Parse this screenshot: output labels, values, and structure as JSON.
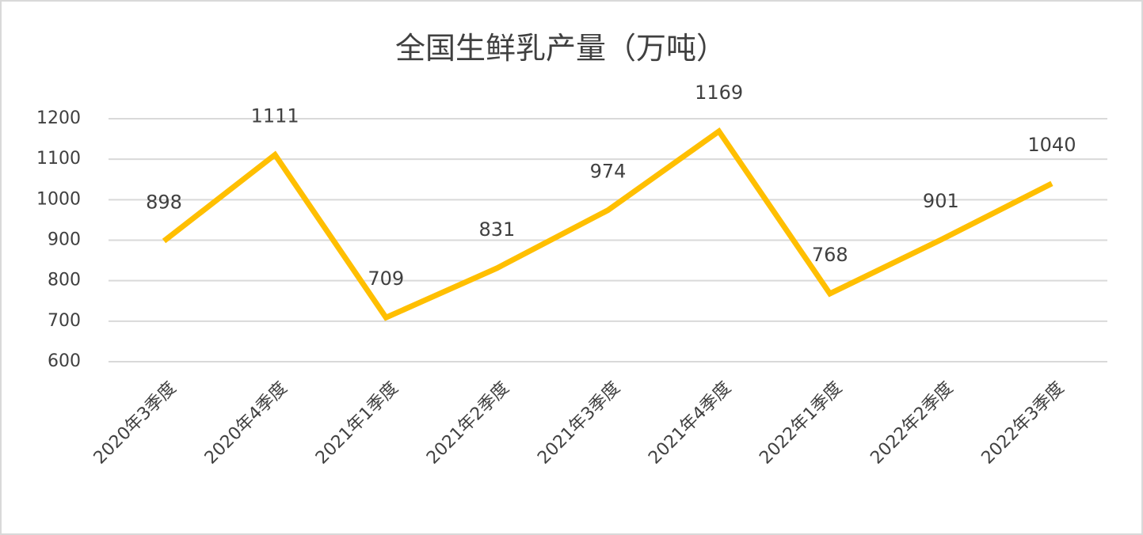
{
  "chart_data": {
    "type": "line",
    "title": "全国生鲜乳产量（万吨）",
    "categories": [
      "2020年3季度",
      "2020年4季度",
      "2021年1季度",
      "2021年2季度",
      "2021年3季度",
      "2021年4季度",
      "2022年1季度",
      "2022年2季度",
      "2022年3季度"
    ],
    "values": [
      898,
      1111,
      709,
      831,
      974,
      1169,
      768,
      901,
      1040
    ],
    "color": "#ffbf00",
    "ylim": [
      600,
      1200
    ],
    "yticks": [
      600,
      700,
      800,
      900,
      1000,
      1100,
      1200
    ],
    "grid": true
  }
}
